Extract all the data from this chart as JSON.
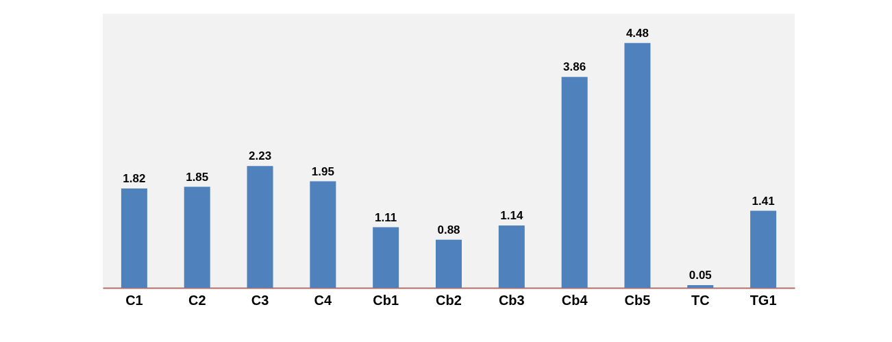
{
  "chart_data": {
    "type": "bar",
    "categories": [
      "C1",
      "C2",
      "C3",
      "C4",
      "Cb1",
      "Cb2",
      "Cb3",
      "Cb4",
      "Cb5",
      "TC",
      "TG1"
    ],
    "values": [
      1.82,
      1.85,
      2.23,
      1.95,
      1.11,
      0.88,
      1.14,
      3.86,
      4.48,
      0.05,
      1.41
    ],
    "color": "#4f81bd",
    "data_labels": true
  }
}
